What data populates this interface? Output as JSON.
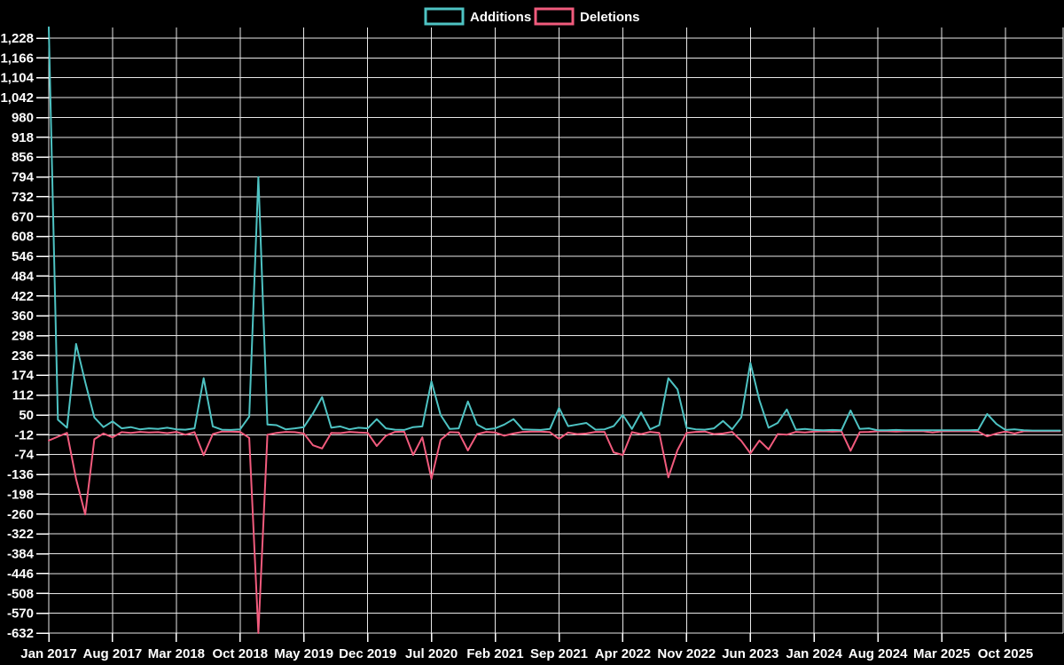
{
  "legend": {
    "additions_label": "Additions",
    "deletions_label": "Deletions"
  },
  "colors": {
    "background": "#000000",
    "grid": "#e8e8e8",
    "text": "#ffffff",
    "additions": "#4ec3c3",
    "deletions": "#f15b7d"
  },
  "chart_data": {
    "type": "line",
    "title": "",
    "xlabel": "",
    "ylabel": "",
    "grid": true,
    "legend_position": "top-center",
    "start_month": "Jan 2017",
    "months_per_x_tick": 7,
    "x_tick_labels": [
      "Jan 2017",
      "Aug 2017",
      "Mar 2018",
      "Oct 2018",
      "May 2019",
      "Dec 2019",
      "Jul 2020",
      "Feb 2021",
      "Sep 2021",
      "Apr 2022",
      "Nov 2022",
      "Jun 2023",
      "Jan 2024",
      "Aug 2024",
      "Mar 2025",
      "Oct 2025"
    ],
    "y_ticks": [
      1228,
      1166,
      1104,
      1042,
      980,
      918,
      856,
      794,
      732,
      670,
      608,
      546,
      484,
      422,
      360,
      298,
      236,
      174,
      112,
      50,
      -12,
      -74,
      -136,
      -198,
      -260,
      -322,
      -384,
      -446,
      -508,
      -570,
      -632
    ],
    "ylim": [
      -632,
      1261
    ],
    "series": [
      {
        "name": "Additions",
        "color": "#4ec3c3",
        "values": [
          1262,
          35,
          10,
          272,
          153,
          42,
          12,
          30,
          8,
          12,
          5,
          8,
          6,
          10,
          5,
          4,
          8,
          165,
          14,
          4,
          3,
          5,
          45,
          794,
          20,
          18,
          5,
          8,
          12,
          55,
          106,
          10,
          14,
          5,
          10,
          8,
          37,
          8,
          4,
          3,
          12,
          14,
          155,
          50,
          6,
          8,
          92,
          20,
          5,
          8,
          20,
          37,
          5,
          4,
          3,
          6,
          72,
          15,
          20,
          25,
          4,
          5,
          15,
          50,
          6,
          58,
          5,
          18,
          165,
          130,
          10,
          5,
          4,
          8,
          31,
          5,
          42,
          213,
          96,
          10,
          25,
          67,
          4,
          6,
          3,
          2,
          3,
          2,
          64,
          6,
          8,
          2,
          2,
          3,
          2,
          2,
          2,
          2,
          2,
          2,
          2,
          2,
          3,
          53,
          22,
          3,
          5,
          2,
          1,
          1,
          1,
          1
        ]
      },
      {
        "name": "Deletions",
        "color": "#f15b7d",
        "values": [
          -30,
          -18,
          -6,
          -150,
          -261,
          -26,
          -8,
          -20,
          -4,
          -6,
          -3,
          -5,
          -4,
          -7,
          -3,
          -12,
          -4,
          -76,
          -10,
          -2,
          -2,
          -3,
          -22,
          -632,
          -12,
          -6,
          -3,
          -4,
          -8,
          -45,
          -55,
          -6,
          -7,
          -3,
          -5,
          -6,
          -47,
          -15,
          -3,
          -2,
          -75,
          -20,
          -150,
          -28,
          -4,
          -5,
          -61,
          -10,
          -3,
          -5,
          -15,
          -8,
          -3,
          -2,
          -2,
          -4,
          -25,
          -5,
          -10,
          -8,
          -3,
          -3,
          -67,
          -75,
          -4,
          -10,
          -3,
          -6,
          -145,
          -60,
          -6,
          -3,
          -2,
          -10,
          -8,
          -3,
          -31,
          -70,
          -30,
          -58,
          -10,
          -12,
          -3,
          -5,
          -2,
          -1,
          -2,
          -1,
          -62,
          -4,
          -3,
          -1,
          -1,
          -2,
          -1,
          -1,
          -1,
          -5,
          -1,
          -1,
          -1,
          -1,
          -2,
          -17,
          -8,
          -2,
          -8,
          -1,
          -1,
          -1,
          -1,
          -1
        ]
      }
    ]
  }
}
